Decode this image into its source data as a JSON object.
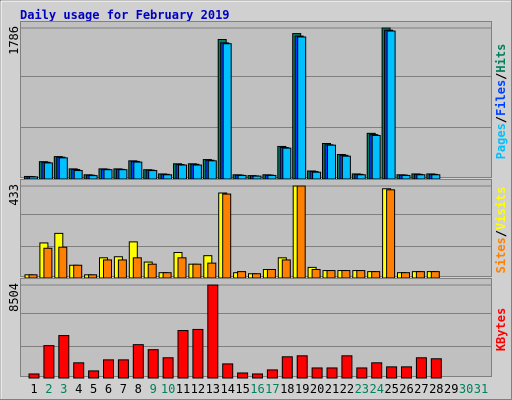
{
  "chart_data": [
    {
      "type": "bar",
      "title": "Daily usage for February 2019",
      "ylim": [
        0,
        1786
      ],
      "yticks": [
        1786
      ],
      "legend_separator": "/",
      "series": [
        {
          "name": "Hits",
          "color": "#00805c",
          "values": [
            30,
            205,
            265,
            120,
            50,
            120,
            120,
            215,
            110,
            60,
            180,
            180,
            230,
            1650,
            50,
            40,
            50,
            385,
            1720,
            95,
            420,
            290,
            60,
            540,
            1786,
            50,
            60,
            60,
            null,
            null,
            null
          ]
        },
        {
          "name": "Files",
          "color": "#0040ff",
          "values": [
            28,
            198,
            258,
            112,
            45,
            115,
            114,
            208,
            105,
            55,
            172,
            174,
            222,
            1610,
            46,
            37,
            46,
            372,
            1690,
            88,
            405,
            280,
            55,
            525,
            1760,
            46,
            55,
            55,
            null,
            null,
            null
          ]
        },
        {
          "name": "Pages",
          "color": "#00c0ff",
          "values": [
            25,
            190,
            250,
            100,
            40,
            110,
            110,
            200,
            100,
            50,
            165,
            165,
            215,
            1600,
            42,
            34,
            42,
            365,
            1680,
            80,
            400,
            270,
            50,
            515,
            1750,
            42,
            50,
            50,
            null,
            null,
            null
          ]
        }
      ]
    },
    {
      "type": "bar",
      "ylim": [
        0,
        433
      ],
      "yticks": [
        433
      ],
      "legend_separator": "/",
      "series": [
        {
          "name": "Visits",
          "color": "#ffff00",
          "values": [
            15,
            165,
            210,
            60,
            15,
            95,
            100,
            170,
            75,
            25,
            120,
            65,
            105,
            400,
            25,
            20,
            40,
            95,
            433,
            50,
            35,
            35,
            35,
            30,
            420,
            25,
            30,
            30,
            null,
            null,
            null
          ]
        },
        {
          "name": "Sites",
          "color": "#ff8000",
          "values": [
            15,
            140,
            145,
            60,
            15,
            85,
            85,
            95,
            65,
            25,
            95,
            65,
            70,
            395,
            30,
            20,
            40,
            85,
            433,
            40,
            35,
            35,
            35,
            30,
            415,
            25,
            30,
            30,
            null,
            null,
            null
          ]
        }
      ]
    },
    {
      "type": "bar",
      "ylim": [
        0,
        8504
      ],
      "yticks": [
        8504
      ],
      "categories": [
        "1",
        "2",
        "3",
        "4",
        "5",
        "6",
        "7",
        "8",
        "9",
        "10",
        "11",
        "12",
        "13",
        "14",
        "15",
        "16",
        "17",
        "18",
        "19",
        "20",
        "21",
        "22",
        "23",
        "24",
        "25",
        "26",
        "27",
        "28",
        "29",
        "30",
        "31"
      ],
      "category_colors": [
        "#000000",
        "#00805c",
        "#00805c",
        "#000000",
        "#000000",
        "#000000",
        "#000000",
        "#000000",
        "#00805c",
        "#00805c",
        "#000000",
        "#000000",
        "#000000",
        "#000000",
        "#000000",
        "#00805c",
        "#00805c",
        "#000000",
        "#000000",
        "#000000",
        "#000000",
        "#000000",
        "#00805c",
        "#00805c",
        "#000000",
        "#000000",
        "#000000",
        "#000000",
        "#000000",
        "#00805c",
        "#00805c"
      ],
      "series": [
        {
          "name": "KBytes",
          "color": "#ff0000",
          "values": [
            370,
            2960,
            3880,
            1390,
            650,
            1660,
            1660,
            3050,
            2590,
            1850,
            4340,
            4440,
            8504,
            1290,
            460,
            370,
            740,
            1940,
            2030,
            920,
            920,
            2030,
            920,
            1390,
            1020,
            1020,
            1850,
            1760,
            null,
            null,
            null
          ]
        }
      ]
    }
  ]
}
